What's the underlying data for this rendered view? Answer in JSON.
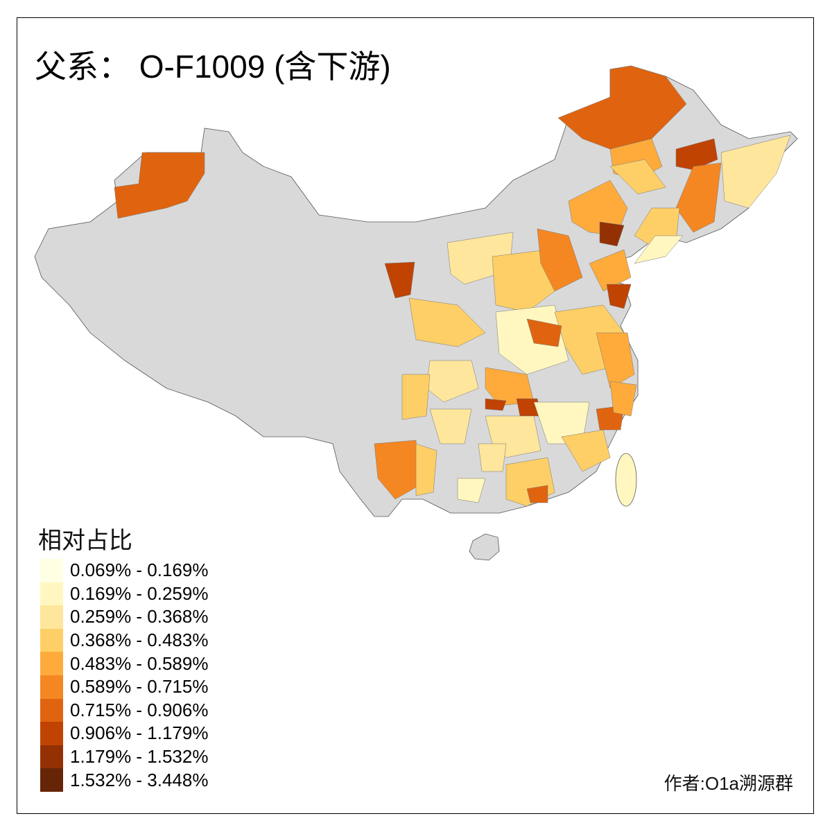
{
  "title": "父系： O-F1009 (含下游)",
  "legend": {
    "title": "相对占比",
    "classes": [
      {
        "label": "0.069% - 0.169%",
        "color": "#FFFFE4"
      },
      {
        "label": "0.169% - 0.259%",
        "color": "#FFF7BF"
      },
      {
        "label": "0.259% - 0.368%",
        "color": "#FEE69C"
      },
      {
        "label": "0.368% - 0.483%",
        "color": "#FECF66"
      },
      {
        "label": "0.483% - 0.589%",
        "color": "#FEAB3B"
      },
      {
        "label": "0.589% - 0.715%",
        "color": "#F58722"
      },
      {
        "label": "0.715% - 0.906%",
        "color": "#E0640F"
      },
      {
        "label": "0.906% - 1.179%",
        "color": "#C04302"
      },
      {
        "label": "1.179% - 1.532%",
        "color": "#933104"
      },
      {
        "label": "1.532% - 3.448%",
        "color": "#662506"
      }
    ]
  },
  "no_data_color": "#D9D9D9",
  "author": "作者:O1a溯源群"
}
